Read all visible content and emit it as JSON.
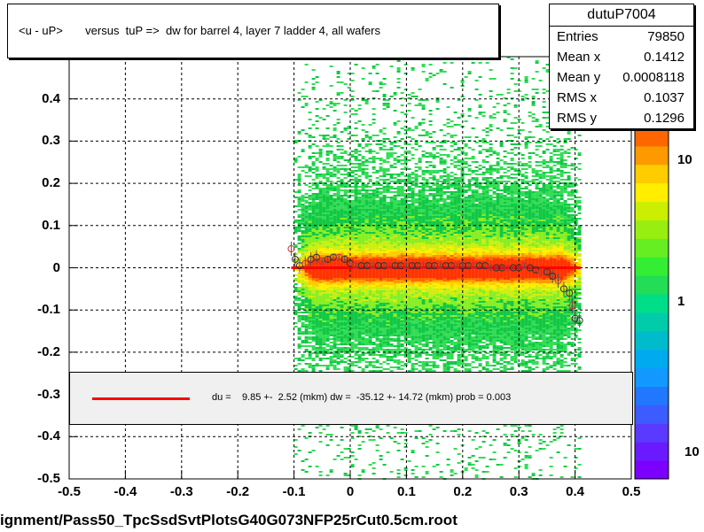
{
  "title": "<u - uP>       versus  tuP =>  dw for barrel 4, layer 7 ladder 4, all wafers",
  "stats": {
    "name": "dutuP7004",
    "rows": [
      {
        "k": "Entries",
        "v": "79850"
      },
      {
        "k": "Mean x",
        "v": "0.1412"
      },
      {
        "k": "Mean y",
        "v": "0.0008118"
      },
      {
        "k": "RMS x",
        "v": "0.1037"
      },
      {
        "k": "RMS y",
        "v": "0.1296"
      }
    ]
  },
  "legend_text": "du =    9.85 +-  2.52 (mkm) dw =  -35.12 +- 14.72 (mkm) prob = 0.003",
  "footer": "ignment/Pass50_TpcSsdSvtPlotsG40G073NFP25rCut0.5cm.root",
  "colorbar_labels": [
    "10",
    "1",
    "10"
  ],
  "chart_data": {
    "type": "heatmap",
    "title": "<u - uP>       versus  tuP =>  dw for barrel 4, layer 7 ladder 4, all wafers",
    "xlim": [
      -0.5,
      0.5
    ],
    "ylim": [
      -0.5,
      0.5
    ],
    "x_ticks": [
      "-0.5",
      "-0.4",
      "-0.3",
      "-0.2",
      "-0.1",
      "0",
      "0.1",
      "0.2",
      "0.3",
      "0.4",
      "0.5"
    ],
    "y_ticks": [
      "-0.5",
      "-0.4",
      "-0.3",
      "-0.2",
      "-0.1",
      "0",
      "0.1",
      "0.2",
      "0.3",
      "0.4"
    ],
    "grid": true,
    "populated_x_range": [
      -0.1,
      0.41
    ],
    "profile_points": [
      {
        "x": -0.105,
        "y": 0.045
      },
      {
        "x": -0.098,
        "y": 0.02
      },
      {
        "x": -0.09,
        "y": 0.005
      },
      {
        "x": -0.08,
        "y": 0.01
      },
      {
        "x": -0.07,
        "y": 0.02
      },
      {
        "x": -0.06,
        "y": 0.025
      },
      {
        "x": -0.05,
        "y": 0.015
      },
      {
        "x": -0.04,
        "y": 0.02
      },
      {
        "x": -0.03,
        "y": 0.025
      },
      {
        "x": -0.02,
        "y": 0.025
      },
      {
        "x": -0.01,
        "y": 0.02
      },
      {
        "x": 0.0,
        "y": 0.01
      },
      {
        "x": 0.01,
        "y": 0.005
      },
      {
        "x": 0.02,
        "y": 0.005
      },
      {
        "x": 0.03,
        "y": 0.005
      },
      {
        "x": 0.04,
        "y": 0.005
      },
      {
        "x": 0.05,
        "y": 0.005
      },
      {
        "x": 0.06,
        "y": 0.005
      },
      {
        "x": 0.07,
        "y": 0.005
      },
      {
        "x": 0.08,
        "y": 0.005
      },
      {
        "x": 0.09,
        "y": 0.005
      },
      {
        "x": 0.1,
        "y": 0.005
      },
      {
        "x": 0.11,
        "y": 0.005
      },
      {
        "x": 0.12,
        "y": 0.005
      },
      {
        "x": 0.13,
        "y": 0.005
      },
      {
        "x": 0.14,
        "y": 0.005
      },
      {
        "x": 0.15,
        "y": 0.005
      },
      {
        "x": 0.16,
        "y": 0.005
      },
      {
        "x": 0.17,
        "y": 0.005
      },
      {
        "x": 0.18,
        "y": 0.005
      },
      {
        "x": 0.19,
        "y": 0.005
      },
      {
        "x": 0.2,
        "y": 0.005
      },
      {
        "x": 0.21,
        "y": 0.005
      },
      {
        "x": 0.22,
        "y": 0.005
      },
      {
        "x": 0.23,
        "y": 0.005
      },
      {
        "x": 0.24,
        "y": 0.005
      },
      {
        "x": 0.25,
        "y": 0.0
      },
      {
        "x": 0.26,
        "y": 0.0
      },
      {
        "x": 0.27,
        "y": 0.0
      },
      {
        "x": 0.28,
        "y": 0.0
      },
      {
        "x": 0.29,
        "y": 0.0
      },
      {
        "x": 0.3,
        "y": 0.0
      },
      {
        "x": 0.31,
        "y": 0.005
      },
      {
        "x": 0.32,
        "y": 0.0
      },
      {
        "x": 0.33,
        "y": -0.005
      },
      {
        "x": 0.34,
        "y": -0.01
      },
      {
        "x": 0.35,
        "y": -0.01
      },
      {
        "x": 0.36,
        "y": -0.02
      },
      {
        "x": 0.37,
        "y": -0.03
      },
      {
        "x": 0.38,
        "y": -0.05
      },
      {
        "x": 0.39,
        "y": -0.06
      },
      {
        "x": 0.395,
        "y": -0.09
      },
      {
        "x": 0.4,
        "y": -0.12
      },
      {
        "x": 0.408,
        "y": -0.125
      }
    ],
    "fit_line": {
      "x": [
        -0.105,
        0.41
      ],
      "y": [
        0.0,
        0.0
      ],
      "color": "#ff0000"
    }
  }
}
